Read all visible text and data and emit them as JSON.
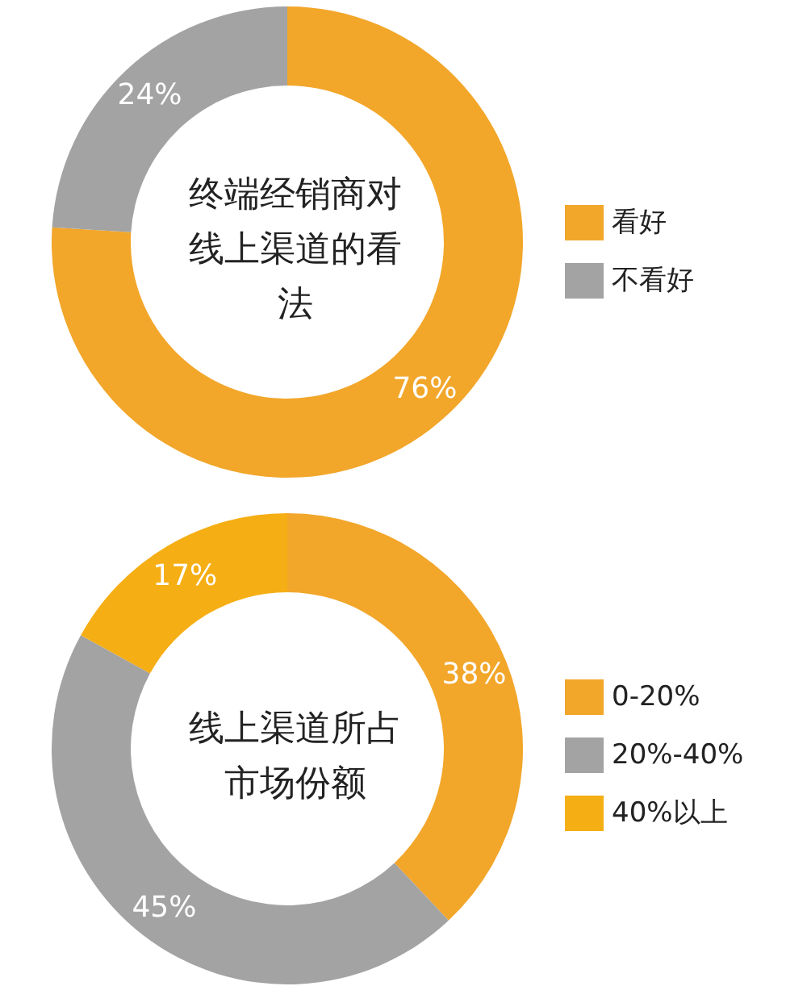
{
  "chart_data": [
    {
      "type": "donut",
      "title": "终端经销商对线上渠道的看法",
      "categories": [
        "看好",
        "不看好"
      ],
      "values": [
        76,
        24
      ],
      "colors": [
        "#f2a62a",
        "#a3a3a3"
      ],
      "value_labels": [
        "76%",
        "24%"
      ],
      "legend": "right"
    },
    {
      "type": "donut",
      "title": "线上渠道所占市场份额",
      "categories": [
        "0-20%",
        "20%-40%",
        "40%以上"
      ],
      "values": [
        38,
        45,
        17
      ],
      "colors": [
        "#f2a62a",
        "#a3a3a3",
        "#f5ae14"
      ],
      "value_labels": [
        "38%",
        "45%",
        "17%"
      ],
      "legend": "right"
    }
  ]
}
